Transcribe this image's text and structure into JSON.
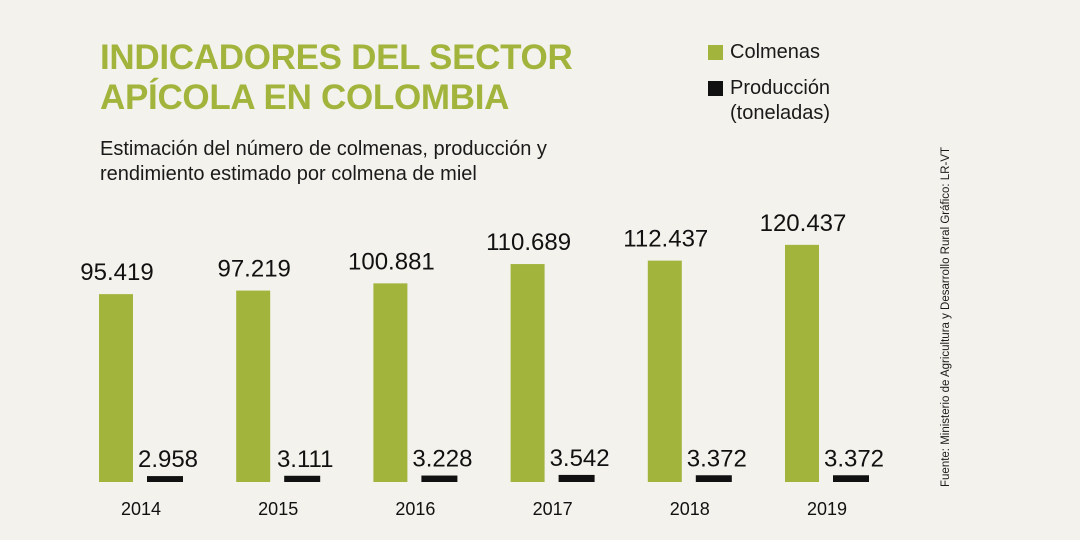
{
  "title": "INDICADORES DEL SECTOR APÍCOLA EN COLOMBIA",
  "subtitle": "Estimación del número de colmenas, producción y rendimiento estimado por colmena de miel",
  "legend": [
    {
      "label": "Colmenas",
      "color": "#a3b43d"
    },
    {
      "label": "Producción (toneladas)",
      "color": "#111111"
    }
  ],
  "source_note": "Fuente: Ministerio de Agricultura y Desarrollo Rural     Gráfico: LR-VT",
  "chart_data": {
    "type": "bar",
    "title": "INDICADORES DEL SECTOR APÍCOLA EN COLOMBIA",
    "subtitle": "Estimación del número de colmenas, producción y rendimiento estimado por colmena de miel",
    "xlabel": "",
    "ylabel": "",
    "categories": [
      "2014",
      "2015",
      "2016",
      "2017",
      "2018",
      "2019"
    ],
    "series": [
      {
        "name": "Colmenas",
        "color": "#a3b43d",
        "values": [
          95419,
          97219,
          100881,
          110689,
          112437,
          120437
        ],
        "labels": [
          "95.419",
          "97.219",
          "100.881",
          "110.689",
          "112.437",
          "120.437"
        ]
      },
      {
        "name": "Producción (toneladas)",
        "color": "#111111",
        "values": [
          2958,
          3111,
          3228,
          3542,
          3372,
          3372
        ],
        "labels": [
          "2.958",
          "3.111",
          "3.228",
          "3.542",
          "3.372",
          "3.372"
        ]
      }
    ],
    "legend_position": "top-right",
    "grid": false,
    "axes_visible": false
  }
}
